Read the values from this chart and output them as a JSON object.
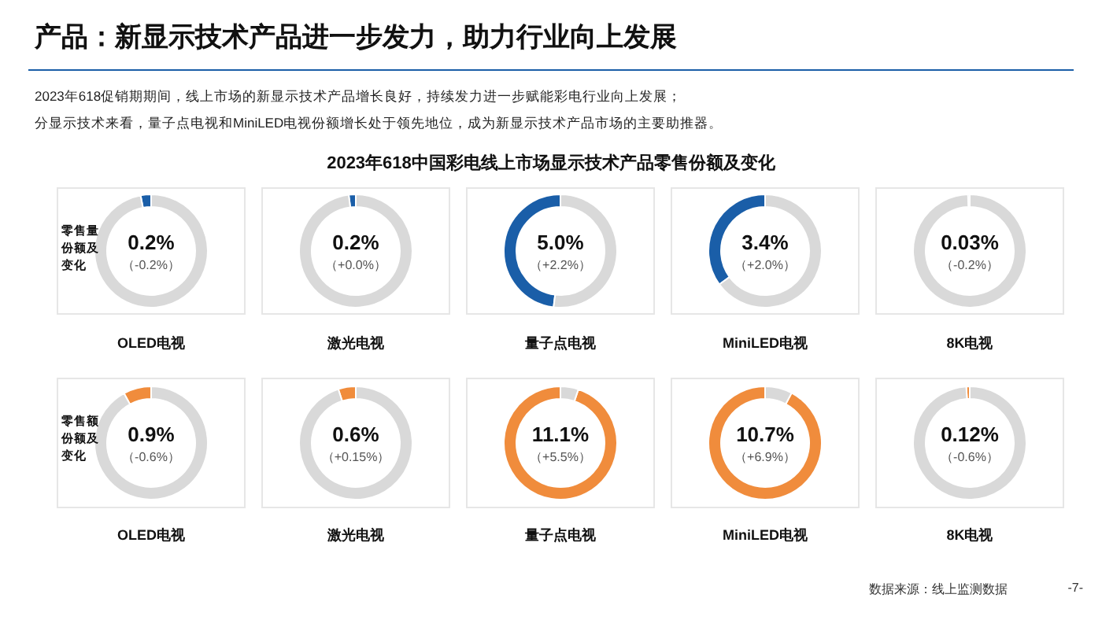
{
  "chart_data": [
    {
      "type": "other",
      "title": "产品：新显示技术产品进一步发力，助力行业向上发展",
      "subtitle": "2023年618中国彩电线上市场显示技术产品零售份额及变化",
      "annotations": [
        "2023年618促销期期间，线上市场的新显示技术产品增长良好，持续发力进一步赋能彩电行业向上发展；",
        "分显示技术来看，量子点电视和MiniLED电视份额增长处于领先地位，成为新显示技术产品市场的主要助推器。",
        "数据来源：线上监测数据",
        "-7-"
      ]
    },
    {
      "type": "donut",
      "title": "OLED电视",
      "categories": [
        null,
        null
      ],
      "values": [
        0.2,
        6.5
      ],
      "colors": [
        "#1a5ea8",
        "#d9d9d9"
      ],
      "value_labels": [
        "0.2%",
        null
      ],
      "annotations": [
        "（-0.2%）",
        "零售量份额及变化"
      ]
    },
    {
      "type": "donut",
      "title": "激光电视",
      "categories": [
        null,
        null
      ],
      "values": [
        0.2,
        9.8
      ],
      "colors": [
        "#1a5ea8",
        "#d9d9d9"
      ],
      "value_labels": [
        "0.2%",
        null
      ],
      "annotations": [
        "（+0.0%）"
      ]
    },
    {
      "type": "donut",
      "title": "量子点电视",
      "categories": [
        null,
        null
      ],
      "values": [
        5.0,
        5.4
      ],
      "colors": [
        "#1a5ea8",
        "#d9d9d9"
      ],
      "value_labels": [
        "5.0%",
        null
      ],
      "annotations": [
        "（+2.2%）"
      ]
    },
    {
      "type": "donut",
      "title": "MiniLED电视",
      "categories": [
        null,
        null
      ],
      "values": [
        3.4,
        6.3
      ],
      "colors": [
        "#1a5ea8",
        "#d9d9d9"
      ],
      "value_labels": [
        "3.4%",
        null
      ],
      "annotations": [
        "（+2.0%）"
      ]
    },
    {
      "type": "donut",
      "title": "8K电视",
      "categories": [
        null,
        null
      ],
      "values": [
        0.03,
        6.0
      ],
      "colors": [
        "#1a5ea8",
        "#d9d9d9"
      ],
      "value_labels": [
        "0.03%",
        null
      ],
      "annotations": [
        "（-0.2%）"
      ]
    },
    {
      "type": "donut",
      "title": "OLED电视",
      "categories": [
        null,
        null
      ],
      "values": [
        0.9,
        10.4
      ],
      "colors": [
        "#f08c3c",
        "#d9d9d9"
      ],
      "value_labels": [
        "0.9%",
        null
      ],
      "annotations": [
        "（-0.6%）",
        "零售额份额及变化"
      ]
    },
    {
      "type": "donut",
      "title": "激光电视",
      "categories": [
        null,
        null
      ],
      "values": [
        0.6,
        11.4
      ],
      "colors": [
        "#f08c3c",
        "#d9d9d9"
      ],
      "value_labels": [
        "0.6%",
        null
      ],
      "annotations": [
        "（+0.15%）"
      ]
    },
    {
      "type": "donut",
      "title": "量子点电视",
      "categories": [
        null,
        null
      ],
      "values": [
        11.1,
        0.6
      ],
      "colors": [
        "#f08c3c",
        "#d9d9d9"
      ],
      "value_labels": [
        "11.1%",
        null
      ],
      "annotations": [
        "（+5.5%）"
      ]
    },
    {
      "type": "donut",
      "title": "MiniLED电视",
      "categories": [
        null,
        null
      ],
      "values": [
        10.7,
        0.9
      ],
      "colors": [
        "#f08c3c",
        "#d9d9d9"
      ],
      "value_labels": [
        "10.7%",
        null
      ],
      "annotations": [
        "（+6.9%）"
      ]
    },
    {
      "type": "donut",
      "title": "8K电视",
      "categories": [
        null,
        null
      ],
      "values": [
        0.12,
        12
      ],
      "colors": [
        "#f08c3c",
        "#d9d9d9"
      ],
      "value_labels": [
        "0.12%",
        null
      ],
      "annotations": [
        "（-0.6%）"
      ]
    }
  ]
}
